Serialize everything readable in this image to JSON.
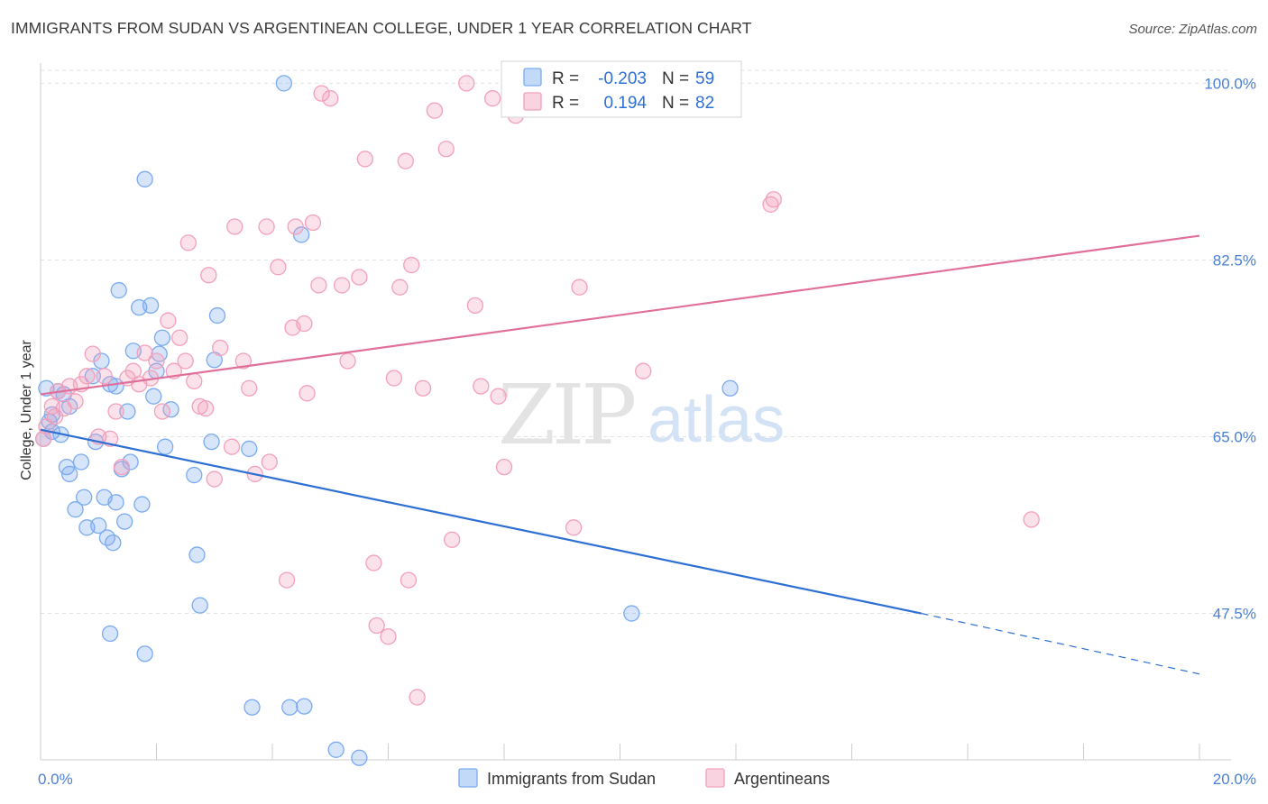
{
  "title": "IMMIGRANTS FROM SUDAN VS ARGENTINEAN COLLEGE, UNDER 1 YEAR CORRELATION CHART",
  "source": "Source: ZipAtlas.com",
  "watermark": {
    "zip": "ZIP",
    "atlas": "atlas"
  },
  "chart_data": {
    "type": "scatter",
    "xlabel": "",
    "ylabel": "College, Under 1 year",
    "xlim": [
      0,
      20
    ],
    "ylim": [
      33,
      102
    ],
    "x_tick_labels": [
      {
        "value": 0,
        "label": "0.0%"
      },
      {
        "value": 20,
        "label": "20.0%"
      }
    ],
    "y_ticks": [
      {
        "value": 47.5,
        "label": "47.5%"
      },
      {
        "value": 65.0,
        "label": "65.0%"
      },
      {
        "value": 82.5,
        "label": "82.5%"
      },
      {
        "value": 100.0,
        "label": "100.0%"
      }
    ],
    "x_minor_ticks": [
      0,
      2,
      4,
      6,
      8,
      10,
      12,
      14,
      16,
      18,
      20
    ],
    "grid": "horizontal dashed",
    "legend_top": [
      {
        "r_label": "R =",
        "r_value": "-0.203",
        "n_label": "N =",
        "n_value": "59",
        "color": "#7aaaf0"
      },
      {
        "r_label": "R =",
        "r_value": "0.194",
        "n_label": "N =",
        "n_value": "82",
        "color": "#f2a0bb"
      }
    ],
    "series": [
      {
        "name": "Immigrants from Sudan",
        "color": "#7aaaf0",
        "line_color": "#2e6fd4",
        "trend": {
          "x0": 0,
          "y0": 65.7,
          "x1": 15.2,
          "y1": 47.5,
          "dashed_to_x": 20,
          "dashed_to_y": 41.5
        },
        "points": [
          [
            0.1,
            69.8
          ],
          [
            0.15,
            66.5
          ],
          [
            0.2,
            67.2
          ],
          [
            0.3,
            69.5
          ],
          [
            0.4,
            69.2
          ],
          [
            0.35,
            65.2
          ],
          [
            0.45,
            62.0
          ],
          [
            0.5,
            61.3
          ],
          [
            0.6,
            57.8
          ],
          [
            0.7,
            62.5
          ],
          [
            0.75,
            59.0
          ],
          [
            0.8,
            56.0
          ],
          [
            0.9,
            71.0
          ],
          [
            0.95,
            64.5
          ],
          [
            1.0,
            56.2
          ],
          [
            1.05,
            72.5
          ],
          [
            1.1,
            59.0
          ],
          [
            1.15,
            55.0
          ],
          [
            1.2,
            70.2
          ],
          [
            1.25,
            54.5
          ],
          [
            1.3,
            58.5
          ],
          [
            1.35,
            79.5
          ],
          [
            1.4,
            61.8
          ],
          [
            1.45,
            56.6
          ],
          [
            1.5,
            67.5
          ],
          [
            1.55,
            62.5
          ],
          [
            1.6,
            73.5
          ],
          [
            1.7,
            77.8
          ],
          [
            1.75,
            58.3
          ],
          [
            1.8,
            90.5
          ],
          [
            1.9,
            78.0
          ],
          [
            1.95,
            69.0
          ],
          [
            2.0,
            71.5
          ],
          [
            2.05,
            73.2
          ],
          [
            2.1,
            74.8
          ],
          [
            2.15,
            64.0
          ],
          [
            2.25,
            67.7
          ],
          [
            2.65,
            61.2
          ],
          [
            2.7,
            53.3
          ],
          [
            2.75,
            48.3
          ],
          [
            2.95,
            64.5
          ],
          [
            3.0,
            72.6
          ],
          [
            3.05,
            77.0
          ],
          [
            3.6,
            63.8
          ],
          [
            3.65,
            38.2
          ],
          [
            4.2,
            100.0
          ],
          [
            4.3,
            38.2
          ],
          [
            4.5,
            85.0
          ],
          [
            4.55,
            38.3
          ],
          [
            5.1,
            34.0
          ],
          [
            5.5,
            33.2
          ],
          [
            1.2,
            45.5
          ],
          [
            1.8,
            43.5
          ],
          [
            10.2,
            47.5
          ],
          [
            11.9,
            69.8
          ],
          [
            0.2,
            65.5
          ],
          [
            0.05,
            64.8
          ],
          [
            0.5,
            68.0
          ],
          [
            1.3,
            70.0
          ]
        ]
      },
      {
        "name": "Argentineans",
        "color": "#f2a0bb",
        "line_color": "#e0709a",
        "trend": {
          "x0": 0,
          "y0": 69.2,
          "x1": 20,
          "y1": 84.9
        },
        "points": [
          [
            0.05,
            64.8
          ],
          [
            0.1,
            66.0
          ],
          [
            0.2,
            68.0
          ],
          [
            0.3,
            69.5
          ],
          [
            0.4,
            67.8
          ],
          [
            0.5,
            70.0
          ],
          [
            0.6,
            68.5
          ],
          [
            0.7,
            70.2
          ],
          [
            0.8,
            71.0
          ],
          [
            0.9,
            73.2
          ],
          [
            1.0,
            65.0
          ],
          [
            1.1,
            71.0
          ],
          [
            1.2,
            64.8
          ],
          [
            1.3,
            67.5
          ],
          [
            1.4,
            62.0
          ],
          [
            1.5,
            70.8
          ],
          [
            1.6,
            71.5
          ],
          [
            1.7,
            70.2
          ],
          [
            1.8,
            73.3
          ],
          [
            1.9,
            70.8
          ],
          [
            2.0,
            72.5
          ],
          [
            2.1,
            67.5
          ],
          [
            2.2,
            76.5
          ],
          [
            2.3,
            71.5
          ],
          [
            2.4,
            74.8
          ],
          [
            2.5,
            72.5
          ],
          [
            2.55,
            84.2
          ],
          [
            2.65,
            70.5
          ],
          [
            2.75,
            68.0
          ],
          [
            2.85,
            67.8
          ],
          [
            2.9,
            81.0
          ],
          [
            3.0,
            60.8
          ],
          [
            3.1,
            73.8
          ],
          [
            3.3,
            64.0
          ],
          [
            3.35,
            85.8
          ],
          [
            3.5,
            72.5
          ],
          [
            3.6,
            69.8
          ],
          [
            3.7,
            61.3
          ],
          [
            3.9,
            85.8
          ],
          [
            3.95,
            62.5
          ],
          [
            4.1,
            81.8
          ],
          [
            4.25,
            50.8
          ],
          [
            4.35,
            75.8
          ],
          [
            4.4,
            85.8
          ],
          [
            4.55,
            76.2
          ],
          [
            4.6,
            69.3
          ],
          [
            4.7,
            86.2
          ],
          [
            4.8,
            80.0
          ],
          [
            4.85,
            99.0
          ],
          [
            5.0,
            98.5
          ],
          [
            5.2,
            80.0
          ],
          [
            5.3,
            72.5
          ],
          [
            5.5,
            80.8
          ],
          [
            5.6,
            92.5
          ],
          [
            5.75,
            52.5
          ],
          [
            5.8,
            46.3
          ],
          [
            6.0,
            45.2
          ],
          [
            6.1,
            70.8
          ],
          [
            6.2,
            79.8
          ],
          [
            6.3,
            92.3
          ],
          [
            6.35,
            50.8
          ],
          [
            6.4,
            82.0
          ],
          [
            6.5,
            39.2
          ],
          [
            6.6,
            69.8
          ],
          [
            6.8,
            97.3
          ],
          [
            7.0,
            93.5
          ],
          [
            7.1,
            54.8
          ],
          [
            7.35,
            100.0
          ],
          [
            7.5,
            78.0
          ],
          [
            7.6,
            70.0
          ],
          [
            7.8,
            98.5
          ],
          [
            7.9,
            69.0
          ],
          [
            8.0,
            62.0
          ],
          [
            8.2,
            96.8
          ],
          [
            9.2,
            56.0
          ],
          [
            9.3,
            79.8
          ],
          [
            10.4,
            71.5
          ],
          [
            12.6,
            88.0
          ],
          [
            12.65,
            88.5
          ],
          [
            17.1,
            56.8
          ],
          [
            9.5,
            100.0
          ],
          [
            0.25,
            67.0
          ]
        ]
      }
    ]
  }
}
